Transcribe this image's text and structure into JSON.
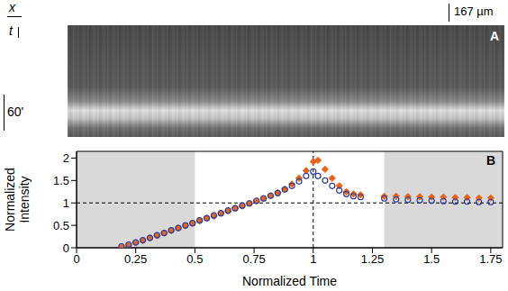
{
  "panel_a": {
    "x_label": "x",
    "t_label": "t",
    "scale_bar": "167 µm",
    "panel_label": "A",
    "time_label": "60'"
  },
  "chart_data": {
    "type": "scatter",
    "panel_label": "B",
    "x_label": "Normalized Time",
    "y_label": "Normalized Intensity",
    "xlim": [
      0,
      1.8
    ],
    "ylim": [
      0,
      2.15
    ],
    "xticks": [
      0,
      0.25,
      0.5,
      0.75,
      1,
      1.25,
      1.5,
      1.75
    ],
    "yticks": [
      0,
      0.5,
      1,
      1.5,
      2
    ],
    "shaded_regions": [
      [
        0,
        0.5
      ],
      [
        1.3,
        1.8
      ]
    ],
    "reference_lines": {
      "x": 1,
      "y": 1
    },
    "x": [
      0.19,
      0.22,
      0.25,
      0.28,
      0.31,
      0.34,
      0.37,
      0.4,
      0.43,
      0.46,
      0.49,
      0.52,
      0.55,
      0.58,
      0.61,
      0.64,
      0.67,
      0.7,
      0.73,
      0.76,
      0.79,
      0.82,
      0.85,
      0.88,
      0.91,
      0.94,
      0.97,
      1.0,
      1.02,
      1.05,
      1.08,
      1.11,
      1.14,
      1.17,
      1.2,
      1.3,
      1.35,
      1.4,
      1.45,
      1.5,
      1.55,
      1.6,
      1.65,
      1.7,
      1.75
    ],
    "series": [
      {
        "color": "#e8641c",
        "marker": "diamond",
        "values": [
          0.02,
          0.06,
          0.11,
          0.16,
          0.22,
          0.27,
          0.33,
          0.38,
          0.44,
          0.49,
          0.55,
          0.6,
          0.66,
          0.71,
          0.77,
          0.82,
          0.88,
          0.93,
          0.99,
          1.04,
          1.1,
          1.16,
          1.23,
          1.31,
          1.42,
          1.55,
          1.72,
          1.92,
          1.95,
          1.75,
          1.55,
          1.38,
          1.25,
          1.2,
          1.18,
          1.15,
          1.15,
          1.14,
          1.14,
          1.13,
          1.13,
          1.12,
          1.12,
          1.11,
          1.11
        ]
      },
      {
        "color": "#2f3f9e",
        "marker": "open_circle",
        "values": [
          0.03,
          0.07,
          0.12,
          0.17,
          0.22,
          0.28,
          0.33,
          0.39,
          0.44,
          0.5,
          0.55,
          0.61,
          0.66,
          0.72,
          0.77,
          0.83,
          0.88,
          0.94,
          0.99,
          1.05,
          1.1,
          1.16,
          1.22,
          1.3,
          1.38,
          1.48,
          1.6,
          1.7,
          1.6,
          1.5,
          1.38,
          1.28,
          1.2,
          1.15,
          1.13,
          1.1,
          1.08,
          1.07,
          1.06,
          1.05,
          1.04,
          1.03,
          1.03,
          1.02,
          1.02
        ]
      }
    ]
  }
}
